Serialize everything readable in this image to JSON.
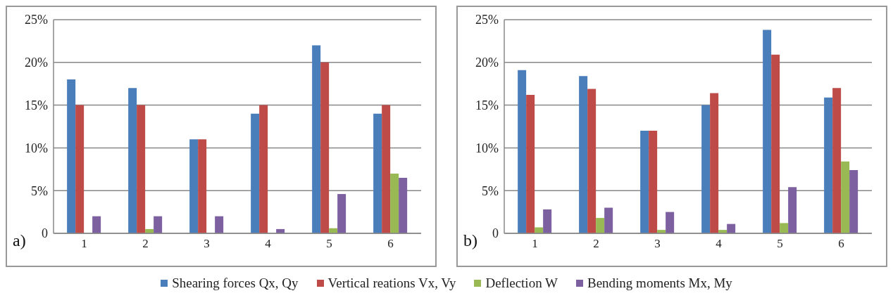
{
  "chart_data": [
    {
      "type": "bar",
      "categories": [
        "1",
        "2",
        "3",
        "4",
        "5",
        "6"
      ],
      "series": [
        {
          "color": "#4a7ebb",
          "values": [
            18,
            17,
            11,
            14,
            22,
            14
          ]
        },
        {
          "color": "#be4b48",
          "values": [
            15,
            15,
            11,
            15,
            20,
            15
          ]
        },
        {
          "color": "#98b954",
          "values": [
            0,
            0.5,
            0,
            0,
            0.6,
            7
          ]
        },
        {
          "color": "#7d60a0",
          "values": [
            2,
            2,
            2,
            0.5,
            4.6,
            6.5
          ]
        }
      ],
      "ylim": [
        0,
        25
      ],
      "yticks": [
        0,
        {
          "value": 5,
          "label": "5%"
        },
        {
          "value": 10,
          "label": "10%"
        },
        {
          "value": 15,
          "label": "15%"
        },
        {
          "value": 20,
          "label": "20%"
        },
        {
          "value": 25,
          "label": "25%"
        }
      ],
      "grid": "y",
      "legend": false,
      "annotations": [
        "a)"
      ]
    },
    {
      "type": "bar",
      "categories": [
        "1",
        "2",
        "3",
        "4",
        "5",
        "6"
      ],
      "series": [
        {
          "name": "Shearing forces  Qx, Qy",
          "color": "#4a7ebb",
          "values": [
            19.1,
            18.4,
            12,
            15,
            23.8,
            15.9
          ]
        },
        {
          "name": "Vertical reations  Vx, Vy",
          "color": "#be4b48",
          "values": [
            16.2,
            16.9,
            12,
            16.4,
            20.9,
            17
          ]
        },
        {
          "name": "Deflection W",
          "color": "#98b954",
          "values": [
            0.7,
            1.8,
            0.4,
            0.4,
            1.2,
            8.4
          ]
        },
        {
          "name": "Bending moments  Mx, My",
          "color": "#7d60a0",
          "values": [
            2.8,
            3,
            2.5,
            1.1,
            5.4,
            7.4
          ]
        }
      ],
      "ylim": [
        0,
        25
      ],
      "yticks": [
        0,
        {
          "value": 5,
          "label": "5%"
        },
        {
          "value": 10,
          "label": "10%"
        },
        {
          "value": 15,
          "label": "15%"
        },
        {
          "value": 20,
          "label": "20%"
        },
        {
          "value": 25,
          "label": "25%"
        }
      ],
      "grid": "y",
      "legend": "bottom",
      "annotations": [
        "b)"
      ]
    }
  ]
}
